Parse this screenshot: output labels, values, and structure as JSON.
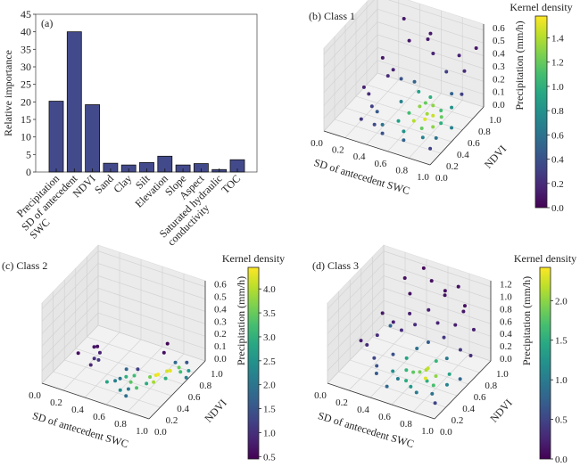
{
  "chart_data": [
    {
      "type": "bar",
      "panel_label": "(a)",
      "ylabel": "Relative importance",
      "xlabel": "",
      "ylim": [
        0,
        45
      ],
      "yticks": [
        0,
        5,
        10,
        15,
        20,
        25,
        30,
        35,
        40,
        45
      ],
      "categories": [
        "Precipitation",
        "SD of antecedent\nSWC",
        "NDVI",
        "Sand",
        "Clay",
        "Silt",
        "Elevation",
        "Slope",
        "Aspect",
        "Saturated hydraulic\nconductivity",
        "TOC"
      ],
      "values": [
        20.2,
        40.0,
        19.2,
        2.5,
        2.0,
        2.7,
        4.5,
        2.0,
        2.4,
        0.7,
        3.5
      ],
      "bar_color": "#434a8c",
      "grid": false
    },
    {
      "type": "scatter3d",
      "panel_label": "(b) Class 1",
      "xlabel": "SD of antecedent SWC",
      "ylabel": "NDVI",
      "zlabel": "Precipitation (mm/h)",
      "xticks": [
        "0.0",
        "0.2",
        "0.4",
        "0.6",
        "0.8",
        "1.0"
      ],
      "yticks": [
        "0.0",
        "0.2",
        "0.4",
        "0.6",
        "0.8",
        "1.0"
      ],
      "zticks": [
        "0.0",
        "0.1",
        "0.2",
        "0.3",
        "0.4",
        "0.5",
        "0.6"
      ],
      "xlim": [
        0,
        1
      ],
      "ylim": [
        0,
        1
      ],
      "zlim": [
        0,
        0.6
      ],
      "colorbar": {
        "label": "Kernel density",
        "range": [
          0,
          1.58
        ],
        "ticks": [
          "0.0",
          "0.2",
          "0.4",
          "0.6",
          "0.8",
          "1.0",
          "1.2",
          "1.4"
        ],
        "colormap": "viridis"
      },
      "points": [
        [
          0.1,
          0.55,
          0.12,
          0.15
        ],
        [
          0.12,
          0.6,
          0.05,
          0.2
        ],
        [
          0.2,
          0.5,
          0.02,
          0.3
        ],
        [
          0.25,
          0.7,
          0.18,
          0.2
        ],
        [
          0.3,
          0.4,
          0.05,
          0.45
        ],
        [
          0.35,
          0.6,
          0.3,
          0.15
        ],
        [
          0.4,
          0.8,
          0.45,
          0.1
        ],
        [
          0.4,
          0.3,
          0.02,
          0.6
        ],
        [
          0.45,
          0.55,
          0.1,
          0.7
        ],
        [
          0.5,
          0.7,
          0.2,
          0.5
        ],
        [
          0.5,
          0.4,
          0.03,
          0.9
        ],
        [
          0.55,
          0.5,
          0.06,
          1.1
        ],
        [
          0.55,
          0.9,
          0.5,
          0.1
        ],
        [
          0.6,
          0.3,
          0.02,
          0.8
        ],
        [
          0.6,
          0.6,
          0.08,
          1.3
        ],
        [
          0.62,
          0.45,
          0.04,
          1.4
        ],
        [
          0.65,
          0.7,
          0.12,
          1.0
        ],
        [
          0.65,
          0.2,
          0.01,
          0.5
        ],
        [
          0.7,
          0.5,
          0.05,
          1.5
        ],
        [
          0.7,
          0.65,
          0.09,
          1.3
        ],
        [
          0.72,
          0.4,
          0.03,
          1.2
        ],
        [
          0.75,
          0.55,
          0.07,
          1.45
        ],
        [
          0.75,
          0.8,
          0.3,
          0.3
        ],
        [
          0.78,
          0.3,
          0.02,
          0.7
        ],
        [
          0.8,
          0.6,
          0.1,
          1.1
        ],
        [
          0.8,
          0.45,
          0.04,
          1.3
        ],
        [
          0.82,
          0.9,
          0.4,
          0.15
        ],
        [
          0.85,
          0.5,
          0.06,
          1.0
        ],
        [
          0.85,
          0.7,
          0.2,
          0.5
        ],
        [
          0.88,
          0.35,
          0.02,
          0.6
        ],
        [
          0.9,
          0.6,
          0.15,
          0.8
        ],
        [
          0.9,
          0.2,
          0.01,
          0.3
        ],
        [
          0.92,
          0.8,
          0.35,
          0.2
        ],
        [
          0.95,
          0.5,
          0.05,
          0.7
        ],
        [
          0.97,
          0.65,
          0.25,
          0.3
        ],
        [
          0.3,
          0.9,
          0.55,
          0.1
        ],
        [
          0.5,
          0.95,
          0.42,
          0.1
        ],
        [
          0.6,
          0.85,
          0.38,
          0.15
        ],
        [
          0.45,
          0.2,
          0.01,
          0.4
        ],
        [
          0.35,
          0.25,
          0.03,
          0.35
        ],
        [
          0.68,
          0.55,
          0.15,
          1.2
        ],
        [
          0.58,
          0.62,
          0.18,
          0.9
        ],
        [
          0.73,
          0.48,
          0.11,
          1.35
        ],
        [
          0.83,
          0.55,
          0.08,
          1.2
        ],
        [
          0.15,
          0.8,
          0.25,
          0.1
        ],
        [
          0.2,
          0.3,
          0.01,
          0.25
        ],
        [
          0.98,
          0.9,
          0.5,
          0.1
        ],
        [
          0.4,
          0.65,
          0.22,
          0.4
        ]
      ]
    },
    {
      "type": "scatter3d",
      "panel_label": "(c) Class 2",
      "xlabel": "SD of antecedent SWC",
      "ylabel": "NDVI",
      "zlabel": "Precipitation (mm/h)",
      "xticks": [
        "0.0",
        "0.2",
        "0.4",
        "0.6",
        "0.8",
        "1.0"
      ],
      "yticks": [
        "0.0",
        "0.2",
        "0.4",
        "0.6",
        "0.8",
        "1.0"
      ],
      "zticks": [
        "0.0",
        "0.1",
        "0.2",
        "0.3",
        "0.4",
        "0.5",
        "0.6"
      ],
      "xlim": [
        0,
        1
      ],
      "ylim": [
        0,
        1
      ],
      "zlim": [
        0,
        0.6
      ],
      "colorbar": {
        "label": "Kernel density",
        "range": [
          0.45,
          4.45
        ],
        "ticks": [
          "0.5",
          "1.0",
          "1.5",
          "2.0",
          "2.5",
          "3.0",
          "3.5",
          "4.0"
        ],
        "colormap": "viridis"
      },
      "points": [
        [
          0.05,
          0.55,
          0.0,
          0.6
        ],
        [
          0.12,
          0.7,
          0.0,
          0.7
        ],
        [
          0.14,
          0.72,
          0.0,
          0.6
        ],
        [
          0.2,
          0.65,
          0.0,
          0.8
        ],
        [
          0.2,
          0.55,
          0.0,
          1.0
        ],
        [
          0.24,
          0.55,
          0.0,
          1.1
        ],
        [
          0.22,
          0.45,
          0.0,
          0.9
        ],
        [
          0.45,
          0.3,
          0.0,
          2.8
        ],
        [
          0.5,
          0.35,
          0.0,
          2.2
        ],
        [
          0.52,
          0.4,
          0.0,
          2.0
        ],
        [
          0.55,
          0.45,
          0.0,
          3.0
        ],
        [
          0.5,
          0.55,
          0.0,
          1.8
        ],
        [
          0.58,
          0.6,
          0.0,
          1.2
        ],
        [
          0.6,
          0.5,
          0.0,
          3.2
        ],
        [
          0.62,
          0.4,
          0.0,
          3.4
        ],
        [
          0.65,
          0.3,
          0.0,
          2.0
        ],
        [
          0.68,
          0.2,
          0.0,
          1.9
        ],
        [
          0.7,
          0.35,
          0.0,
          3.3
        ],
        [
          0.72,
          0.55,
          0.0,
          3.6
        ],
        [
          0.75,
          0.6,
          0.0,
          4.3
        ],
        [
          0.76,
          0.62,
          0.0,
          4.4
        ],
        [
          0.78,
          0.5,
          0.0,
          3.9
        ],
        [
          0.8,
          0.7,
          0.0,
          4.2
        ],
        [
          0.82,
          0.72,
          0.0,
          4.3
        ],
        [
          0.84,
          0.6,
          0.0,
          3.0
        ],
        [
          0.8,
          0.85,
          0.0,
          1.8
        ],
        [
          0.86,
          0.8,
          0.0,
          3.5
        ],
        [
          0.9,
          0.75,
          0.0,
          3.2
        ],
        [
          0.88,
          0.9,
          0.0,
          1.5
        ],
        [
          0.95,
          0.8,
          0.0,
          2.6
        ],
        [
          0.98,
          0.7,
          0.0,
          2.2
        ],
        [
          0.72,
          0.8,
          0.08,
          0.6
        ],
        [
          0.7,
          0.9,
          0.1,
          0.5
        ],
        [
          0.6,
          0.25,
          0.0,
          2.4
        ],
        [
          0.74,
          0.45,
          0.0,
          2.9
        ]
      ]
    },
    {
      "type": "scatter3d",
      "panel_label": "(d) Class 3",
      "xlabel": "SD of antecedent SWC",
      "ylabel": "NDVI",
      "zlabel": "Precipitation (mm/h)",
      "xticks": [
        "0.0",
        "0.2",
        "0.4",
        "0.6",
        "0.8",
        "1.0"
      ],
      "yticks": [
        "0.0",
        "0.2",
        "0.4",
        "0.6",
        "0.8",
        "1.0"
      ],
      "zticks": [
        "0.0",
        "0.2",
        "0.4",
        "0.6",
        "0.8",
        "1.0",
        "1.2"
      ],
      "xlim": [
        0,
        1
      ],
      "ylim": [
        0,
        1
      ],
      "zlim": [
        0,
        1.2
      ],
      "colorbar": {
        "label": "Kernel density",
        "range": [
          0,
          2.42
        ],
        "ticks": [
          "0.0",
          "0.5",
          "1.0",
          "1.5",
          "2.0"
        ],
        "colormap": "viridis"
      },
      "points": [
        [
          0.05,
          0.5,
          0.25,
          0.2
        ],
        [
          0.08,
          0.55,
          0.15,
          0.3
        ],
        [
          0.15,
          0.6,
          0.3,
          0.3
        ],
        [
          0.2,
          0.45,
          0.1,
          0.5
        ],
        [
          0.22,
          0.7,
          0.4,
          0.8
        ],
        [
          0.25,
          0.4,
          0.05,
          0.6
        ],
        [
          0.3,
          0.6,
          0.6,
          0.2
        ],
        [
          0.3,
          0.3,
          0.05,
          0.7
        ],
        [
          0.35,
          0.8,
          0.9,
          0.1
        ],
        [
          0.35,
          0.5,
          0.2,
          0.6
        ],
        [
          0.4,
          0.4,
          0.05,
          1.2
        ],
        [
          0.4,
          0.7,
          0.7,
          0.2
        ],
        [
          0.45,
          0.55,
          0.15,
          1.4
        ],
        [
          0.45,
          0.2,
          0.02,
          0.8
        ],
        [
          0.5,
          0.9,
          1.1,
          0.1
        ],
        [
          0.5,
          0.45,
          0.08,
          1.6
        ],
        [
          0.52,
          0.6,
          0.3,
          0.9
        ],
        [
          0.55,
          0.35,
          0.03,
          1.5
        ],
        [
          0.55,
          0.75,
          0.8,
          0.2
        ],
        [
          0.6,
          0.5,
          0.06,
          1.9
        ],
        [
          0.6,
          0.65,
          0.4,
          0.7
        ],
        [
          0.62,
          0.3,
          0.02,
          1.3
        ],
        [
          0.65,
          0.55,
          0.1,
          2.2
        ],
        [
          0.65,
          0.85,
          1.0,
          0.1
        ],
        [
          0.68,
          0.45,
          0.05,
          2.3
        ],
        [
          0.7,
          0.6,
          0.2,
          1.6
        ],
        [
          0.7,
          0.25,
          0.02,
          1.0
        ],
        [
          0.72,
          0.7,
          0.5,
          0.4
        ],
        [
          0.75,
          0.5,
          0.08,
          2.0
        ],
        [
          0.75,
          0.9,
          1.15,
          0.1
        ],
        [
          0.78,
          0.4,
          0.04,
          1.7
        ],
        [
          0.8,
          0.6,
          0.3,
          1.0
        ],
        [
          0.8,
          0.75,
          0.7,
          0.2
        ],
        [
          0.82,
          0.3,
          0.02,
          0.9
        ],
        [
          0.85,
          0.55,
          0.12,
          1.4
        ],
        [
          0.85,
          0.8,
          0.9,
          0.15
        ],
        [
          0.88,
          0.45,
          0.06,
          1.1
        ],
        [
          0.9,
          0.65,
          0.45,
          0.4
        ],
        [
          0.9,
          0.2,
          0.01,
          0.5
        ],
        [
          0.92,
          0.85,
          0.6,
          0.2
        ],
        [
          0.95,
          0.55,
          0.1,
          0.8
        ],
        [
          0.97,
          0.7,
          0.35,
          0.3
        ],
        [
          0.25,
          0.9,
          1.0,
          0.1
        ],
        [
          0.4,
          0.95,
          1.2,
          0.05
        ],
        [
          0.6,
          0.95,
          0.95,
          0.1
        ],
        [
          0.45,
          0.7,
          0.55,
          0.3
        ],
        [
          0.58,
          0.42,
          0.12,
          1.8
        ],
        [
          0.67,
          0.48,
          0.15,
          2.1
        ],
        [
          0.73,
          0.38,
          0.1,
          1.5
        ],
        [
          0.5,
          0.3,
          0.08,
          1.0
        ],
        [
          0.35,
          0.65,
          0.45,
          0.3
        ],
        [
          0.12,
          0.75,
          0.5,
          0.15
        ],
        [
          0.62,
          0.78,
          0.6,
          0.25
        ],
        [
          0.8,
          0.92,
          0.85,
          0.1
        ]
      ]
    }
  ]
}
